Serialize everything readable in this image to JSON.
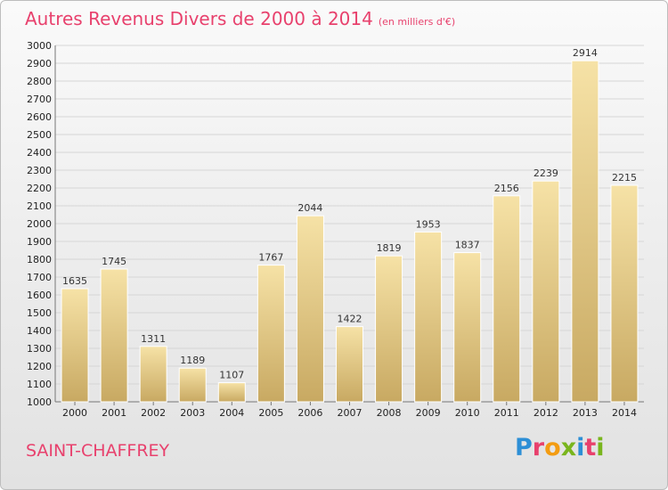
{
  "header": {
    "title": "Autres Revenus Divers de 2000 à 2014",
    "unit": "(en milliers d'€)"
  },
  "footer": {
    "place": "SAINT-CHAFFREY",
    "logo": "Proxiti"
  },
  "colors": {
    "title": "#e8416d",
    "bar_light": "#f6e2a6",
    "bar_dark": "#c8a962",
    "logo_letters": [
      "#2d8fd6",
      "#e8416d",
      "#f39c12",
      "#79b51d",
      "#2d8fd6",
      "#e8416d",
      "#79b51d"
    ]
  },
  "chart_data": {
    "type": "bar",
    "title": "Autres Revenus Divers de 2000 à 2014",
    "ylabel": "(en milliers d'€)",
    "categories": [
      "2000",
      "2001",
      "2002",
      "2003",
      "2004",
      "2005",
      "2006",
      "2007",
      "2008",
      "2009",
      "2010",
      "2011",
      "2012",
      "2013",
      "2014"
    ],
    "values": [
      1635,
      1745,
      1311,
      1189,
      1107,
      1767,
      2044,
      1422,
      1819,
      1953,
      1837,
      2156,
      2239,
      2914,
      2215
    ],
    "ylim": [
      1000,
      3000
    ],
    "ytick_step": 100,
    "grid": true
  }
}
